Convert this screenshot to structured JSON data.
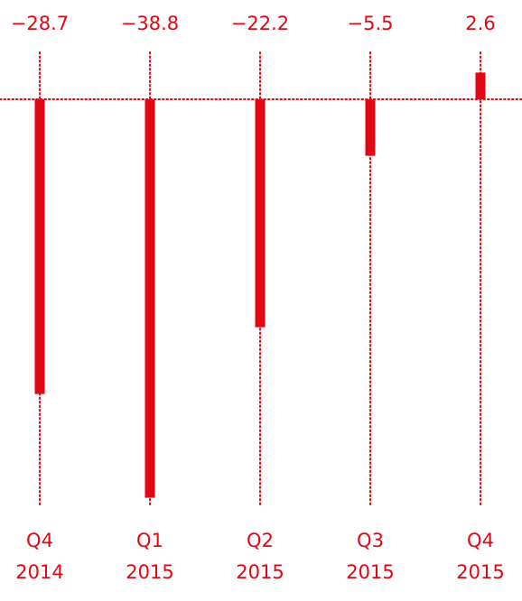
{
  "chart_data": {
    "type": "bar",
    "categories": [
      {
        "line1": "Q4",
        "line2": "2014"
      },
      {
        "line1": "Q1",
        "line2": "2015"
      },
      {
        "line1": "Q2",
        "line2": "2015"
      },
      {
        "line1": "Q3",
        "line2": "2015"
      },
      {
        "line1": "Q4",
        "line2": "2015"
      }
    ],
    "values": [
      -28.7,
      -38.8,
      -22.2,
      -5.5,
      2.6
    ],
    "value_labels": [
      "−28.7",
      "−38.8",
      "−22.2",
      "−5.5",
      "2.6"
    ],
    "title": "",
    "xlabel": "",
    "ylabel": "",
    "zero_line": true,
    "grid": false,
    "color": "#e30613"
  }
}
